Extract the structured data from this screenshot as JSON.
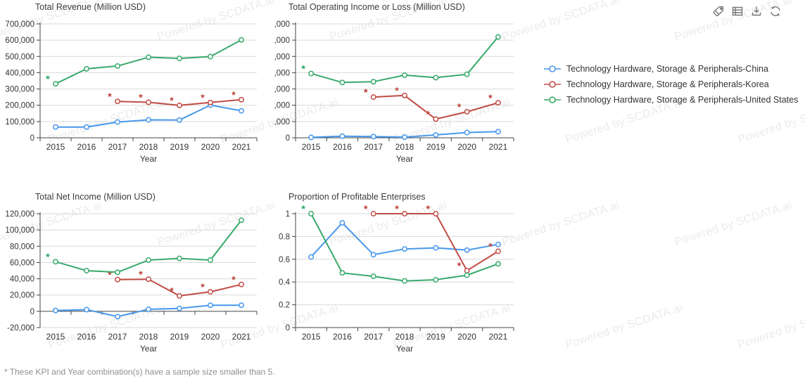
{
  "watermark": {
    "text": "Powered by SCDATA.ai"
  },
  "toolbar": {
    "icons": [
      "tag-icon",
      "data-view-icon",
      "download-icon",
      "refresh-icon"
    ]
  },
  "legend": {
    "items": [
      {
        "label": "Technology Hardware, Storage & Peripherals-China",
        "color": "#4798eb"
      },
      {
        "label": "Technology Hardware, Storage & Peripherals-Korea",
        "color": "#c14b45"
      },
      {
        "label": "Technology Hardware, Storage & Peripherals-United States",
        "color": "#38a96b"
      }
    ]
  },
  "footnote": "* These KPI and Year combination(s) have a sample size smaller than 5.",
  "chart_data": [
    {
      "type": "line",
      "title": "Total Revenue (Million USD)",
      "xlabel": "Year",
      "categories": [
        2015,
        2016,
        2017,
        2018,
        2019,
        2020,
        2021
      ],
      "ylim": [
        0,
        700000
      ],
      "ytick_step": 100000,
      "grid": true,
      "series": [
        {
          "name": "Technology Hardware, Storage & Peripherals-China",
          "color": "#4798eb",
          "values": [
            66000,
            66000,
            97000,
            110000,
            109000,
            201000,
            166000
          ],
          "flagged_years": []
        },
        {
          "name": "Technology Hardware, Storage & Peripherals-Korea",
          "color": "#c14b45",
          "values": [
            null,
            null,
            224000,
            218000,
            199000,
            217000,
            234000
          ],
          "flagged_years": [
            2017,
            2018,
            2019,
            2020,
            2021
          ]
        },
        {
          "name": "Technology Hardware, Storage & Peripherals-United States",
          "color": "#38a96b",
          "values": [
            332000,
            424000,
            441000,
            495000,
            488000,
            499000,
            602000
          ],
          "flagged_years": [
            2015
          ]
        }
      ]
    },
    {
      "type": "line",
      "title": "Total Operating Income or Loss (Million USD)",
      "xlabel": "Year",
      "categories": [
        2015,
        2016,
        2017,
        2018,
        2019,
        2020,
        2021
      ],
      "ylim": [
        0,
        140000
      ],
      "ytick_step": 20000,
      "grid": true,
      "series": [
        {
          "name": "Technology Hardware, Storage & Peripherals-China",
          "color": "#4798eb",
          "values": [
            500,
            2000,
            1500,
            800,
            3500,
            6500,
            7500
          ],
          "flagged_years": []
        },
        {
          "name": "Technology Hardware, Storage & Peripherals-Korea",
          "color": "#c14b45",
          "values": [
            null,
            null,
            50000,
            52000,
            23000,
            32000,
            43000
          ],
          "flagged_years": [
            2017,
            2018,
            2019,
            2020,
            2021
          ]
        },
        {
          "name": "Technology Hardware, Storage & Peripherals-United States",
          "color": "#38a96b",
          "values": [
            79000,
            68000,
            69000,
            77000,
            74000,
            78000,
            124000
          ],
          "flagged_years": [
            2015
          ]
        }
      ]
    },
    {
      "type": "line",
      "title": "Total Net Income (Million USD)",
      "xlabel": "Year",
      "categories": [
        2015,
        2016,
        2017,
        2018,
        2019,
        2020,
        2021
      ],
      "ylim": [
        -20000,
        120000
      ],
      "ytick_step": 20000,
      "grid": true,
      "series": [
        {
          "name": "Technology Hardware, Storage & Peripherals-China",
          "color": "#4798eb",
          "values": [
            1000,
            2000,
            -6500,
            2500,
            3500,
            7500,
            7500
          ],
          "flagged_years": []
        },
        {
          "name": "Technology Hardware, Storage & Peripherals-Korea",
          "color": "#c14b45",
          "values": [
            null,
            null,
            39000,
            39500,
            19000,
            24000,
            33000
          ],
          "flagged_years": [
            2017,
            2018,
            2019,
            2020,
            2021
          ]
        },
        {
          "name": "Technology Hardware, Storage & Peripherals-United States",
          "color": "#38a96b",
          "values": [
            61000,
            50000,
            48000,
            63000,
            65000,
            63000,
            112000
          ],
          "flagged_years": [
            2015
          ]
        }
      ]
    },
    {
      "type": "line",
      "title": "Proportion of Profitable Enterprises",
      "xlabel": "Year",
      "categories": [
        2015,
        2016,
        2017,
        2018,
        2019,
        2020,
        2021
      ],
      "ylim": [
        0,
        1
      ],
      "ytick_step": 0.2,
      "grid": true,
      "series": [
        {
          "name": "Technology Hardware, Storage & Peripherals-China",
          "color": "#4798eb",
          "values": [
            0.62,
            0.92,
            0.64,
            0.69,
            0.7,
            0.68,
            0.73
          ],
          "flagged_years": []
        },
        {
          "name": "Technology Hardware, Storage & Peripherals-Korea",
          "color": "#c14b45",
          "values": [
            null,
            null,
            1,
            1,
            1,
            0.5,
            0.67
          ],
          "flagged_years": [
            2017,
            2018,
            2019,
            2020,
            2021
          ]
        },
        {
          "name": "Technology Hardware, Storage & Peripherals-United States",
          "color": "#38a96b",
          "values": [
            1,
            0.48,
            0.45,
            0.41,
            0.42,
            0.46,
            0.56
          ],
          "flagged_years": [
            2015
          ]
        }
      ]
    }
  ]
}
